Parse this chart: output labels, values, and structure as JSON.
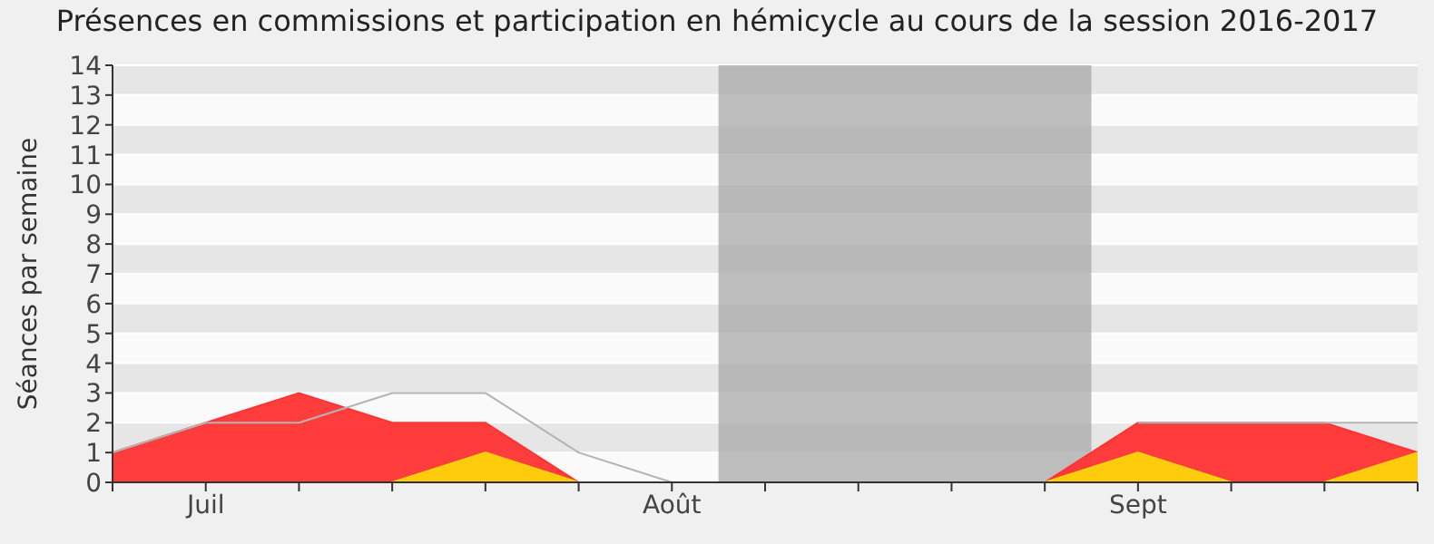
{
  "chart_data": {
    "type": "area",
    "title": "Présences en commissions et participation en hémicycle au cours de la session 2016-2017",
    "ylabel": "Séances par semaine",
    "categories": [
      null,
      "Juil",
      null,
      null,
      null,
      null,
      "Août",
      null,
      null,
      null,
      null,
      "Sept",
      null,
      null,
      null
    ],
    "ylim": [
      0,
      14
    ],
    "yticks": [
      0,
      1,
      2,
      3,
      4,
      5,
      6,
      7,
      8,
      9,
      10,
      11,
      12,
      13,
      14
    ],
    "series": [
      {
        "type": "area",
        "color": "#ff3333",
        "values": [
          1,
          2,
          3,
          2,
          2,
          0,
          0,
          0,
          0,
          0,
          0,
          2,
          2,
          2,
          1
        ]
      },
      {
        "type": "area",
        "color": "#ffd30a",
        "values": [
          0,
          0,
          0,
          0,
          1,
          0,
          0,
          0,
          0,
          0,
          0,
          1,
          0,
          0,
          1
        ]
      },
      {
        "type": "line",
        "color": "#b4b4b4",
        "values": [
          1,
          2,
          2,
          3,
          3,
          1,
          0,
          null,
          null,
          null,
          null,
          2,
          2,
          2,
          2
        ]
      }
    ],
    "bands": [
      {
        "axis": "x",
        "from": "Août",
        "to": "Sept",
        "color": "#a8a8a8"
      }
    ],
    "grid": "y",
    "legend": false
  }
}
